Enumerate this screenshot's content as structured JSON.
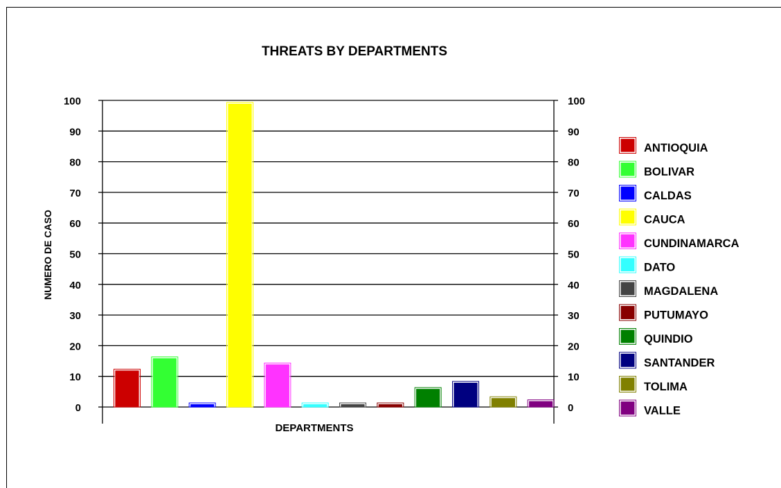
{
  "chart_data": {
    "type": "bar",
    "title": "THREATS  BY DEPARTMENTS",
    "xlabel": "DEPARTMENTS",
    "ylabel": "NUMERO DE CASO",
    "ylim": [
      0,
      100
    ],
    "yticks": [
      0,
      10,
      20,
      30,
      40,
      50,
      60,
      70,
      80,
      90,
      100
    ],
    "grid": true,
    "legend_position": "right",
    "series": [
      {
        "name": "ANTIOQUIA",
        "value": 12,
        "color": "#cc0000"
      },
      {
        "name": "BOLIVAR",
        "value": 16,
        "color": "#33ff33"
      },
      {
        "name": "CALDAS",
        "value": 1,
        "color": "#0000ff"
      },
      {
        "name": "CAUCA",
        "value": 99,
        "color": "#ffff00"
      },
      {
        "name": "CUNDINAMARCA",
        "value": 14,
        "color": "#ff33ff"
      },
      {
        "name": "DATO",
        "value": 1,
        "color": "#33ffff"
      },
      {
        "name": "MAGDALENA",
        "value": 1,
        "color": "#444444"
      },
      {
        "name": "PUTUMAYO",
        "value": 1,
        "color": "#880000"
      },
      {
        "name": "QUINDIO",
        "value": 6,
        "color": "#008000"
      },
      {
        "name": "SANTANDER",
        "value": 8,
        "color": "#000080"
      },
      {
        "name": "TOLIMA",
        "value": 3,
        "color": "#808000"
      },
      {
        "name": "VALLE",
        "value": 2,
        "color": "#800080"
      }
    ]
  }
}
